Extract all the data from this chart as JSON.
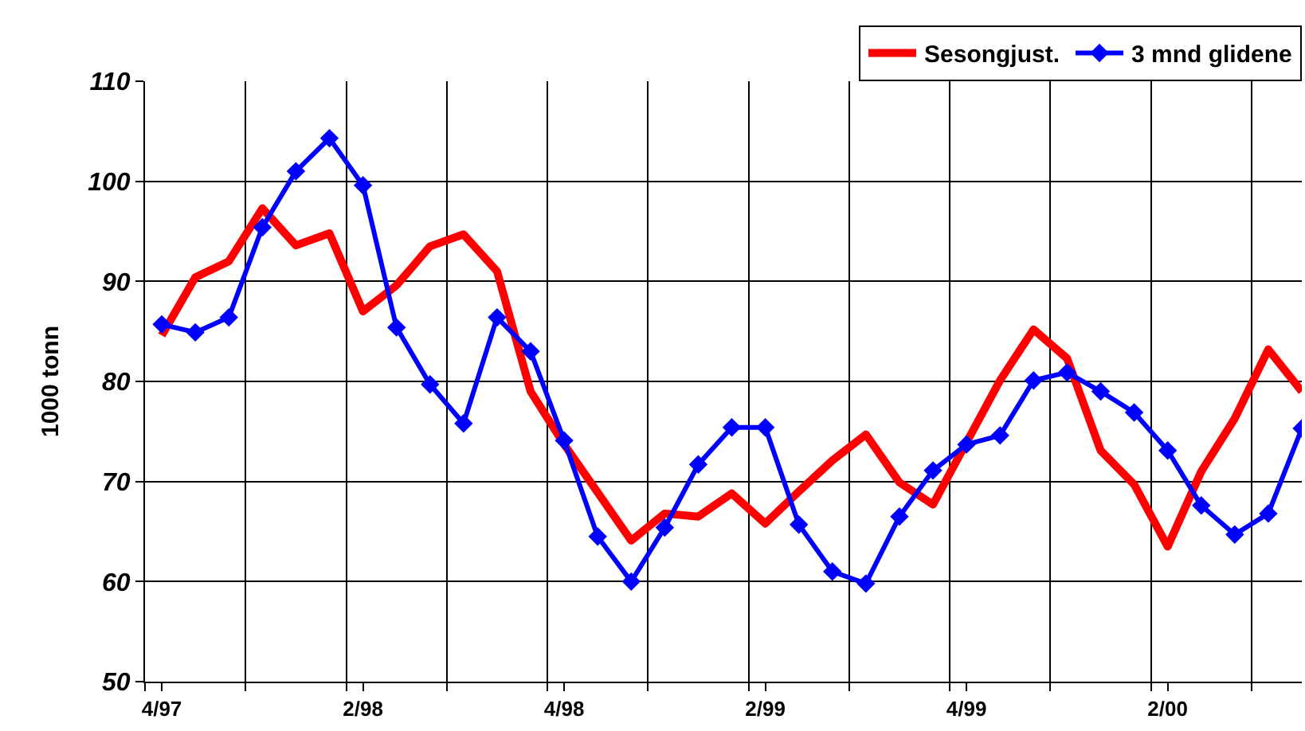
{
  "chart_data": {
    "type": "line",
    "ylabel": "1000 tonn",
    "categories": [
      "4/97",
      null,
      null,
      null,
      null,
      null,
      "2/98",
      null,
      null,
      null,
      null,
      null,
      "4/98",
      null,
      null,
      null,
      null,
      null,
      "2/99",
      null,
      null,
      null,
      null,
      null,
      "4/99",
      null,
      null,
      null,
      null,
      null,
      "2/00",
      null,
      null,
      null,
      null
    ],
    "series": [
      {
        "name": "Sesongjust.",
        "color": "#ff0000",
        "marker": "none",
        "values": [
          84.6,
          90.4,
          92.0,
          97.3,
          93.6,
          94.8,
          87.0,
          89.6,
          93.5,
          94.7,
          91.0,
          79.0,
          73.7,
          68.9,
          64.1,
          66.8,
          66.5,
          68.8,
          65.8,
          69.0,
          72.1,
          74.7,
          69.9,
          67.7,
          73.9,
          80.1,
          85.2,
          82.3,
          73.1,
          69.7,
          63.5,
          71.0,
          76.3,
          83.2,
          79.0
        ]
      },
      {
        "name": "3 mnd glidene",
        "color": "#0000ff",
        "marker": "diamond",
        "values": [
          85.7,
          84.9,
          86.4,
          95.4,
          101.0,
          104.3,
          99.6,
          85.4,
          79.7,
          75.8,
          86.4,
          83.0,
          74.1,
          64.5,
          60.0,
          65.4,
          71.7,
          75.4,
          75.4,
          65.7,
          61.0,
          59.8,
          66.5,
          71.1,
          73.7,
          74.6,
          80.1,
          80.9,
          79.0,
          76.9,
          73.1,
          67.6,
          64.7,
          66.8,
          75.3
        ]
      }
    ],
    "ylim": [
      50,
      110
    ],
    "yticks": [
      50,
      60,
      70,
      80,
      90,
      100,
      110
    ],
    "grid": true,
    "legend": "top right"
  }
}
